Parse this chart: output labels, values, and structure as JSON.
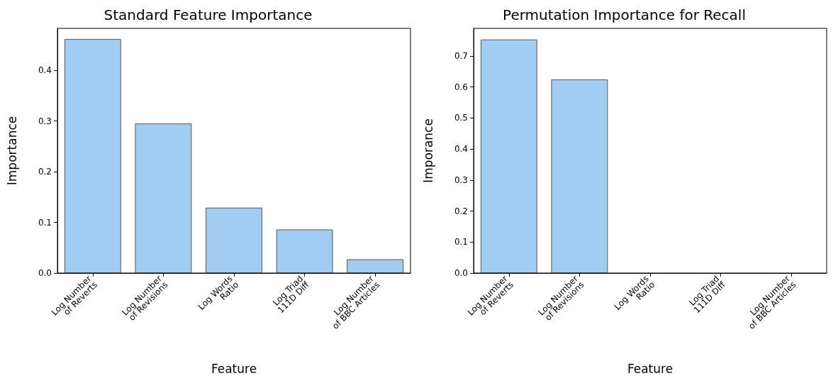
{
  "chart_data": [
    {
      "type": "bar",
      "title": "Standard Feature Importance",
      "xlabel": "Feature",
      "ylabel": "Importance",
      "categories": [
        "Log Number\nof Reverts",
        "Log Number\nof Revisions",
        "Log Words\nRatio",
        "Log Triad\n111D Diff",
        "Log Number\nof BBC Articles"
      ],
      "values": [
        0.462,
        0.295,
        0.129,
        0.086,
        0.027
      ],
      "color": "#a1cdf2",
      "ylim": [
        0,
        0.483
      ],
      "yticks": [
        {
          "value": 0,
          "label": "0.0"
        },
        0.1,
        0.2,
        0.3,
        0.4
      ],
      "grid": false
    },
    {
      "type": "bar",
      "title": "Permutation Importance for Recall",
      "xlabel": "Feature",
      "ylabel": "Imporance",
      "categories": [
        "Log Number\nof Reverts",
        "Log Number\nof Revisions",
        "Log Words\nRatio",
        "Log Triad\n111D Diff",
        "Log Number\nof BBC Articles"
      ],
      "values": [
        0.753,
        0.624,
        0,
        0,
        0
      ],
      "color": "#a1cdf2",
      "ylim": [
        0,
        0.789
      ],
      "yticks": [
        {
          "value": 0,
          "label": "0.0"
        },
        0.1,
        0.2,
        0.3,
        0.4,
        0.5,
        0.6,
        0.7
      ],
      "grid": false
    }
  ]
}
